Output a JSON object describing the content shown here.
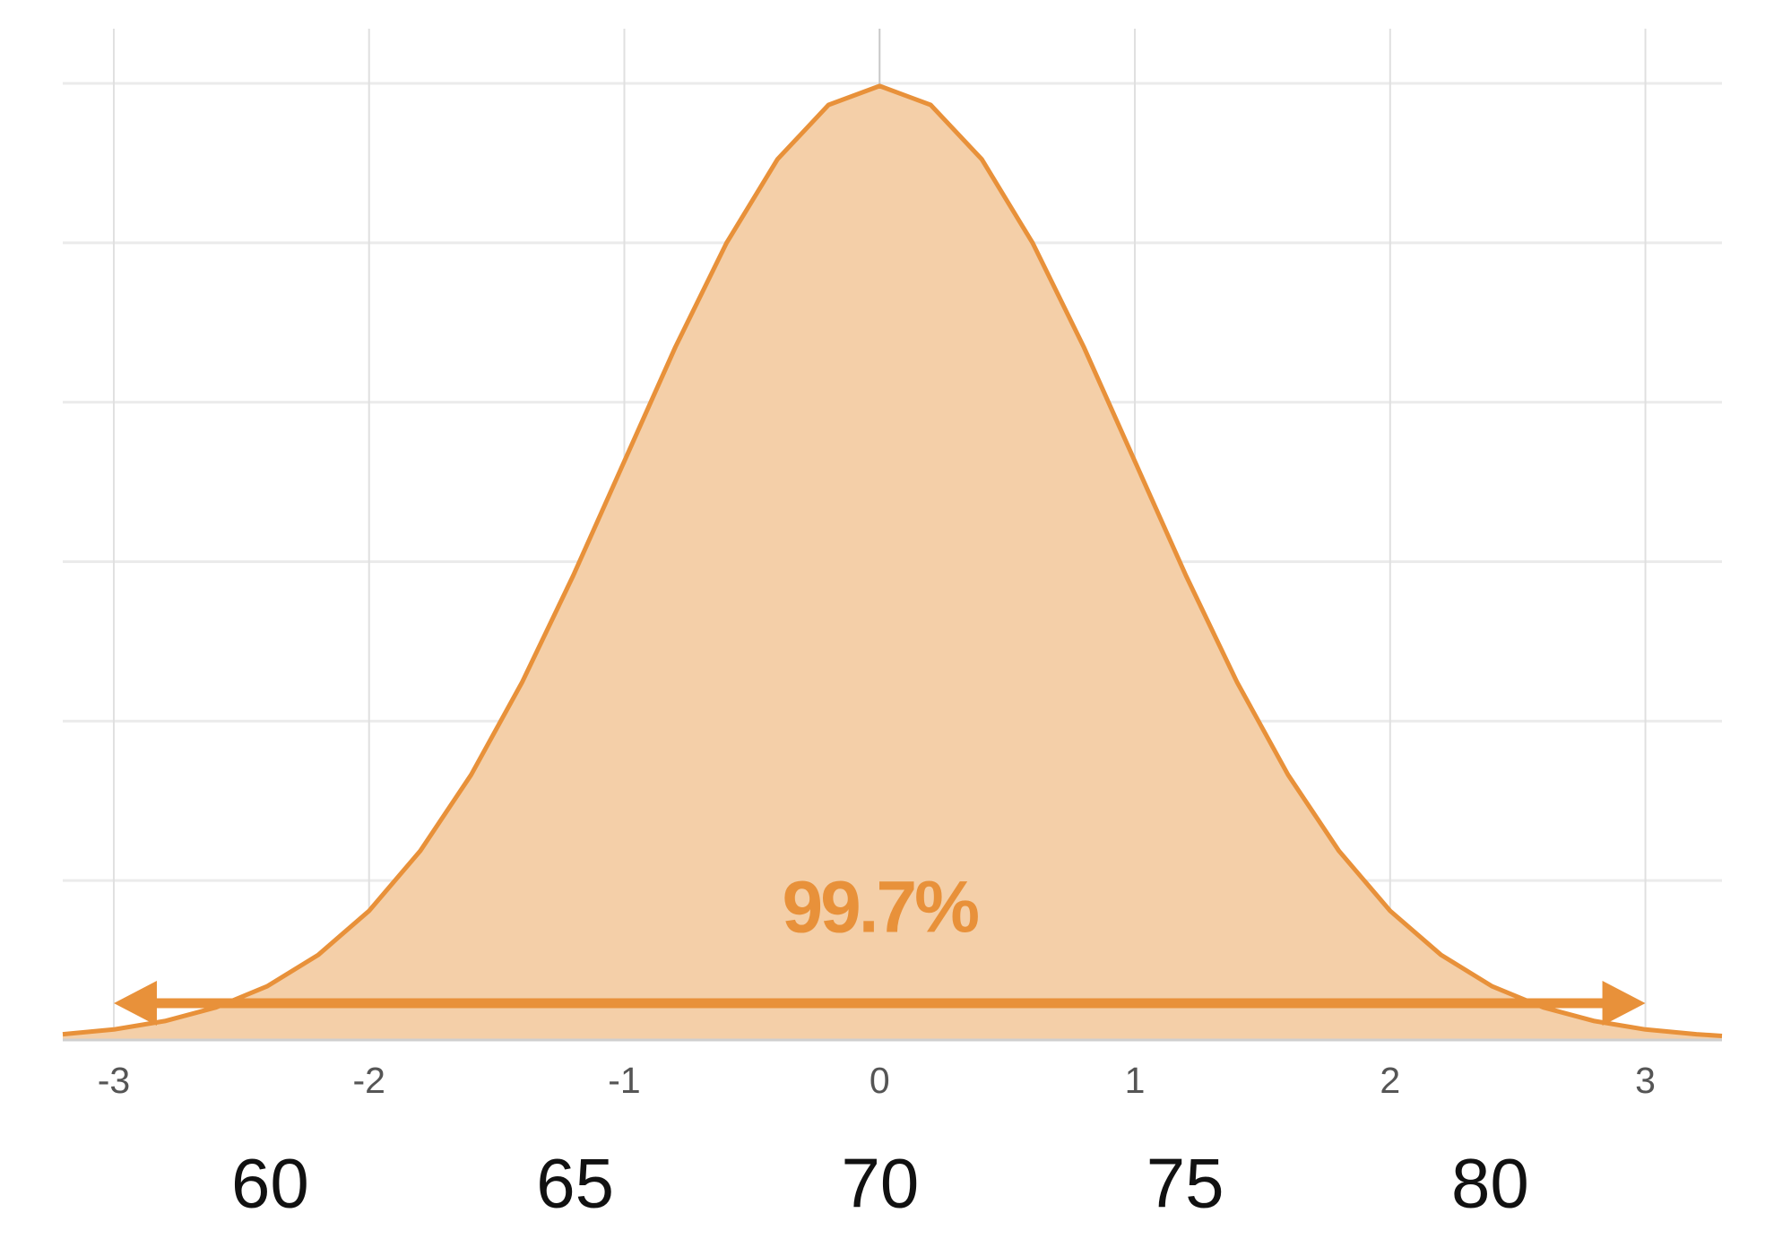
{
  "chart_data": {
    "type": "area",
    "x": [
      -3.2,
      -3.0,
      -2.8,
      -2.6,
      -2.4,
      -2.2,
      -2.0,
      -1.8,
      -1.6,
      -1.4,
      -1.2,
      -1.0,
      -0.8,
      -0.6,
      -0.4,
      -0.2,
      0,
      0.2,
      0.4,
      0.6,
      0.8,
      1.0,
      1.2,
      1.4,
      1.6,
      1.8,
      2.0,
      2.2,
      2.4,
      2.6,
      2.8,
      3.0,
      3.2,
      3.3
    ],
    "values": [
      0.0024,
      0.0044,
      0.0079,
      0.0136,
      0.0224,
      0.0355,
      0.054,
      0.079,
      0.1109,
      0.1497,
      0.1942,
      0.242,
      0.2897,
      0.3332,
      0.3683,
      0.391,
      0.3989,
      0.391,
      0.3683,
      0.3332,
      0.2897,
      0.242,
      0.1942,
      0.1497,
      0.1109,
      0.079,
      0.054,
      0.0355,
      0.0224,
      0.0136,
      0.0079,
      0.0044,
      0.0024,
      0.0017
    ],
    "color": "#e8913a",
    "fill_color": "#f4cfa8",
    "xlim": [
      -3.2,
      3.3
    ],
    "xticks": [
      -3,
      -2,
      -1,
      0,
      1,
      2,
      3
    ],
    "x2lim": [
      56.6,
      83.8
    ],
    "x2ticks": [
      60,
      65,
      70,
      75,
      80
    ],
    "ylim": [
      0,
      0.4
    ],
    "yticks": [
      0,
      0.0667,
      0.1333,
      0.2,
      0.2667,
      0.3333,
      0.4
    ],
    "ytick_labels": false,
    "grid": true,
    "annotation": {
      "text": "99.7%",
      "from": -3,
      "to": 3
    }
  }
}
